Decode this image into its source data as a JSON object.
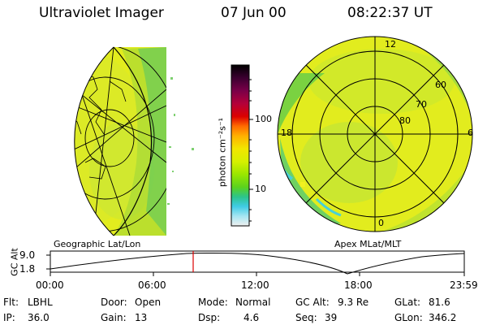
{
  "header": {
    "instrument": "Ultraviolet Imager",
    "date": "07 Jun 00",
    "time": "08:22:37 UT"
  },
  "left_panel": {
    "label": "Geographic Lat/Lon"
  },
  "right_panel": {
    "label": "Apex MLat/MLT",
    "mlt_labels": {
      "top": "12",
      "left": "18",
      "right": "6",
      "bottom": "0"
    },
    "lat_labels": [
      "60",
      "70",
      "80"
    ]
  },
  "colorbar": {
    "unit_label": "photon cm⁻²s⁻¹",
    "tick_100": "100",
    "tick_10": "10",
    "colors": [
      "#000000",
      "#3b0030",
      "#7a0048",
      "#b4003a",
      "#dc0000",
      "#ff6a00",
      "#ffb000",
      "#f2e600",
      "#d6f000",
      "#9ae600",
      "#5ad21e",
      "#2cc48c",
      "#40cce6",
      "#a6e6f2",
      "#f0f0f0"
    ]
  },
  "altitude_plot": {
    "ylabel": "GC Alt",
    "ytick_top": "9.0",
    "ytick_bottom": "1.8",
    "xticks": [
      "00:00",
      "06:00",
      "12:00",
      "18:00",
      "23:59"
    ]
  },
  "info": {
    "filter": {
      "label": "Flt:",
      "value": "LBHL"
    },
    "ip": {
      "label": "IP:",
      "value": "36.0"
    },
    "door": {
      "label": "Door:",
      "value": "Open"
    },
    "gain": {
      "label": "Gain:",
      "value": "13"
    },
    "mode": {
      "label": "Mode:",
      "value": "Normal"
    },
    "dsp": {
      "label": "Dsp:",
      "value": "4.6"
    },
    "gc_alt": {
      "label": "GC Alt:",
      "value": "9.3 Re"
    },
    "seq": {
      "label": "Seq:",
      "value": "39"
    },
    "glat": {
      "label": "GLat:",
      "value": "81.6"
    },
    "glon": {
      "label": "GLon:",
      "value": "346.2"
    }
  },
  "colors": {
    "aurora_yellow": "#e6ee1a",
    "aurora_lime": "#c4e83a",
    "aurora_green": "#4ec850",
    "aurora_cyan": "#48d0d8",
    "marker_red": "#dd0000"
  }
}
